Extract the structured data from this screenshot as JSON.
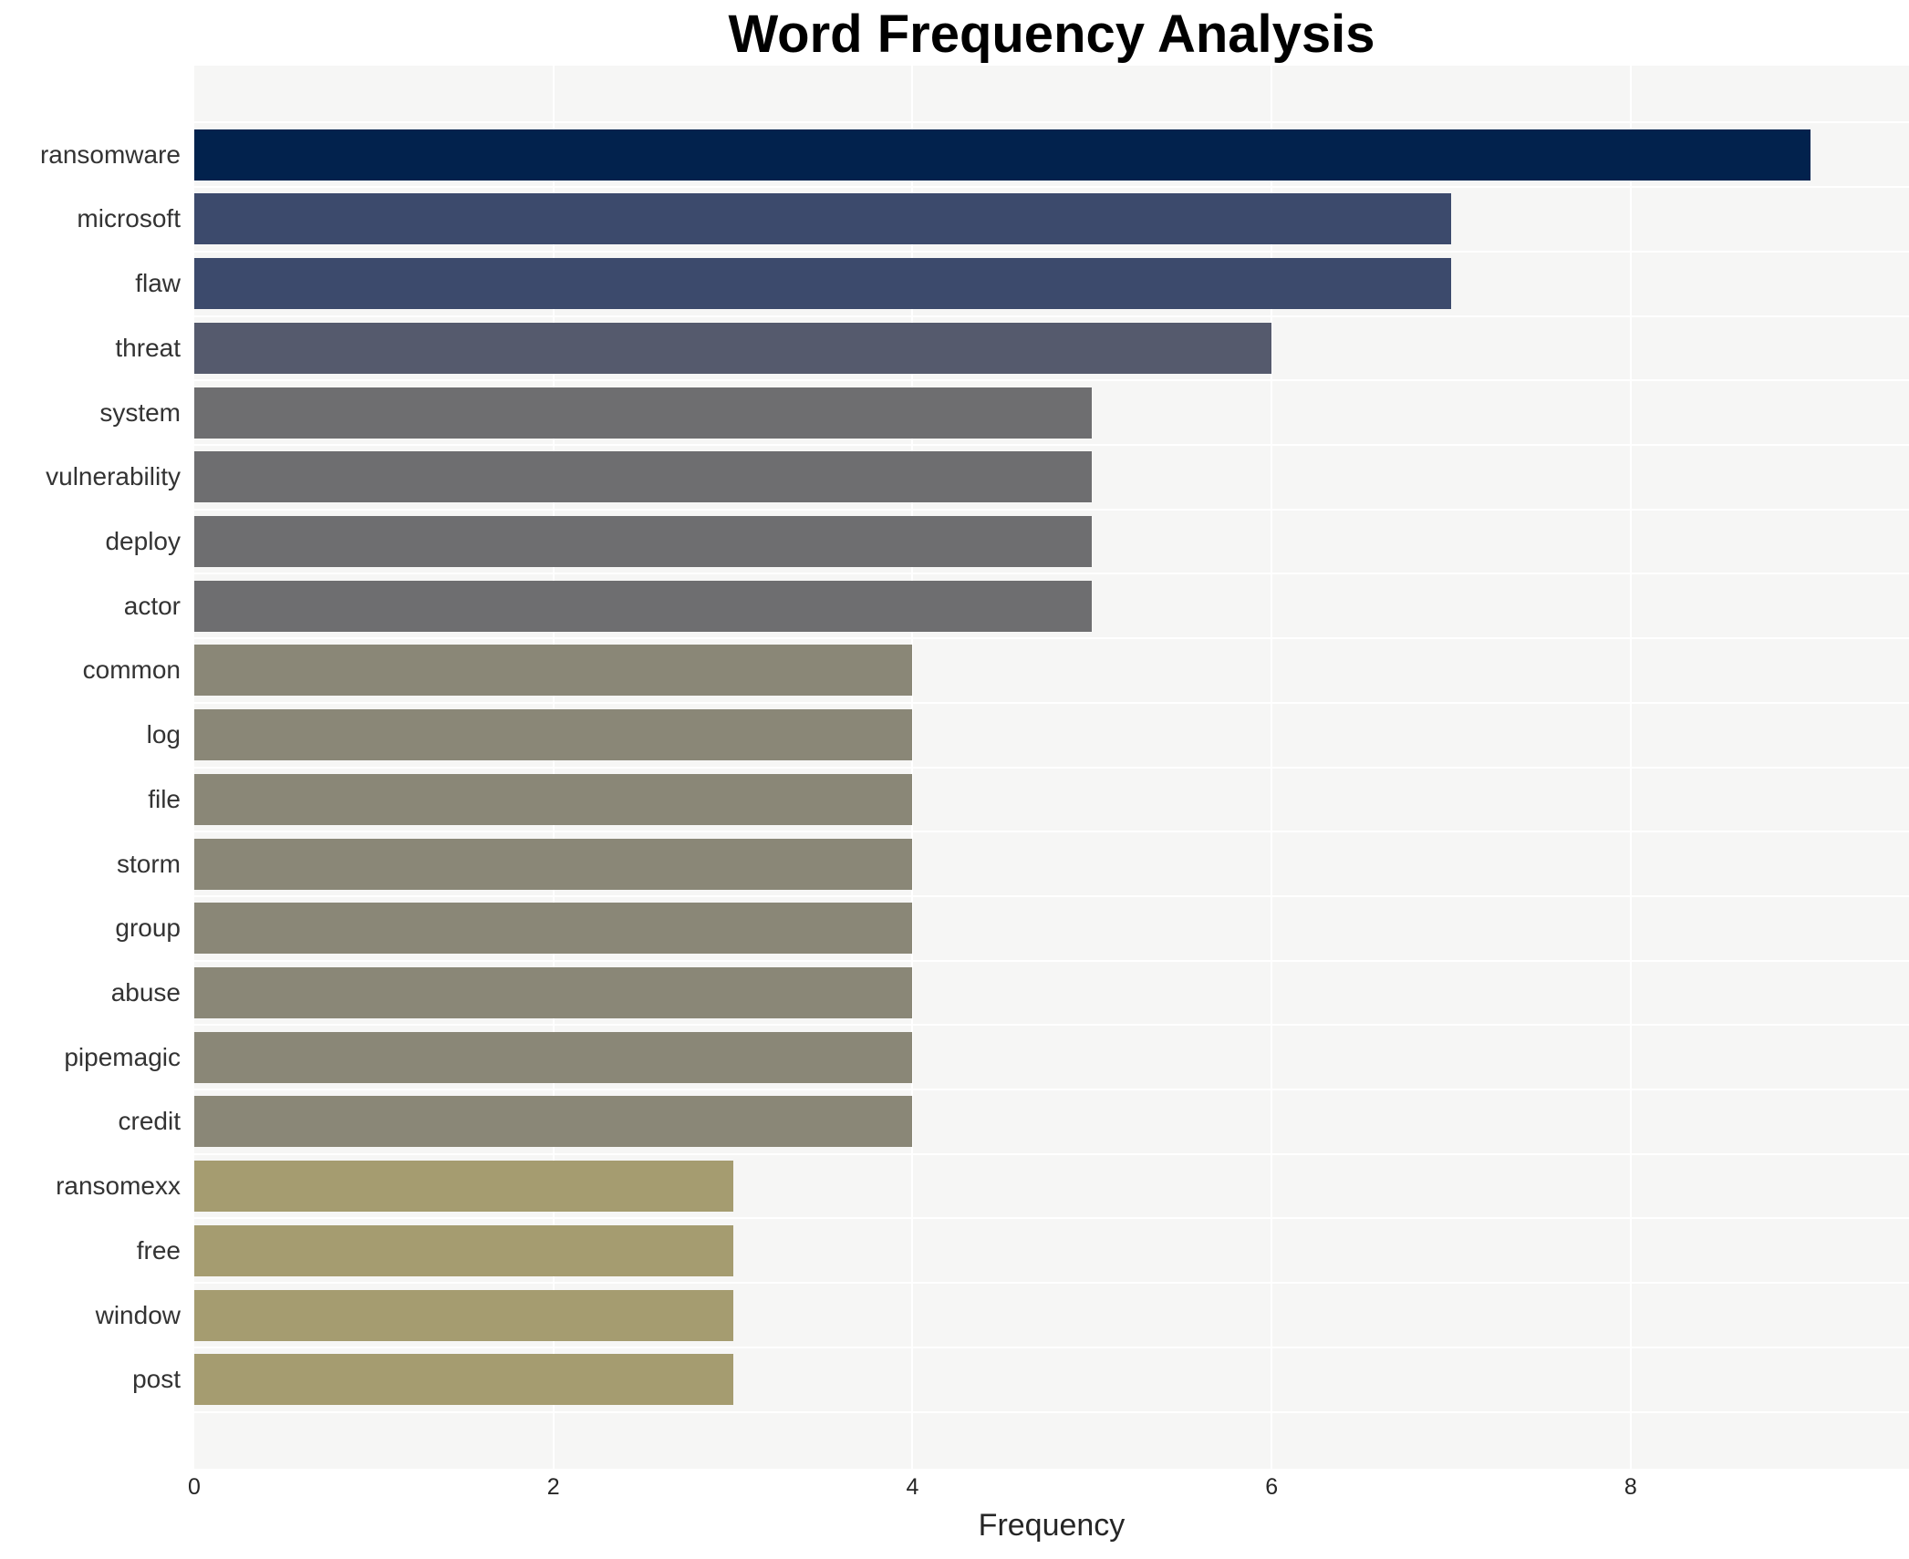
{
  "title": "Word Frequency Analysis",
  "chart_data": {
    "type": "bar",
    "orientation": "horizontal",
    "title": "Word Frequency Analysis",
    "xlabel": "Frequency",
    "ylabel": "",
    "categories": [
      "ransomware",
      "microsoft",
      "flaw",
      "threat",
      "system",
      "vulnerability",
      "deploy",
      "actor",
      "common",
      "log",
      "file",
      "storm",
      "group",
      "abuse",
      "pipemagic",
      "credit",
      "ransomexx",
      "free",
      "window",
      "post"
    ],
    "values": [
      9,
      7,
      7,
      6,
      5,
      5,
      5,
      5,
      4,
      4,
      4,
      4,
      4,
      4,
      4,
      4,
      3,
      3,
      3,
      3
    ],
    "bar_colors": [
      "#02224d",
      "#3c4a6c",
      "#3c4a6c",
      "#555a6d",
      "#6e6e70",
      "#6e6e70",
      "#6e6e70",
      "#6e6e70",
      "#8a8777",
      "#8a8777",
      "#8a8777",
      "#8a8777",
      "#8a8777",
      "#8a8777",
      "#8a8777",
      "#8a8777",
      "#a59c70",
      "#a59c70",
      "#a59c70",
      "#a59c70"
    ],
    "x_ticks": [
      0,
      2,
      4,
      6,
      8
    ],
    "xlim": [
      0,
      9.55
    ],
    "grid": "on",
    "grid_color": "#ffffff",
    "panel_bg": "#f6f6f5",
    "legend": "none"
  }
}
